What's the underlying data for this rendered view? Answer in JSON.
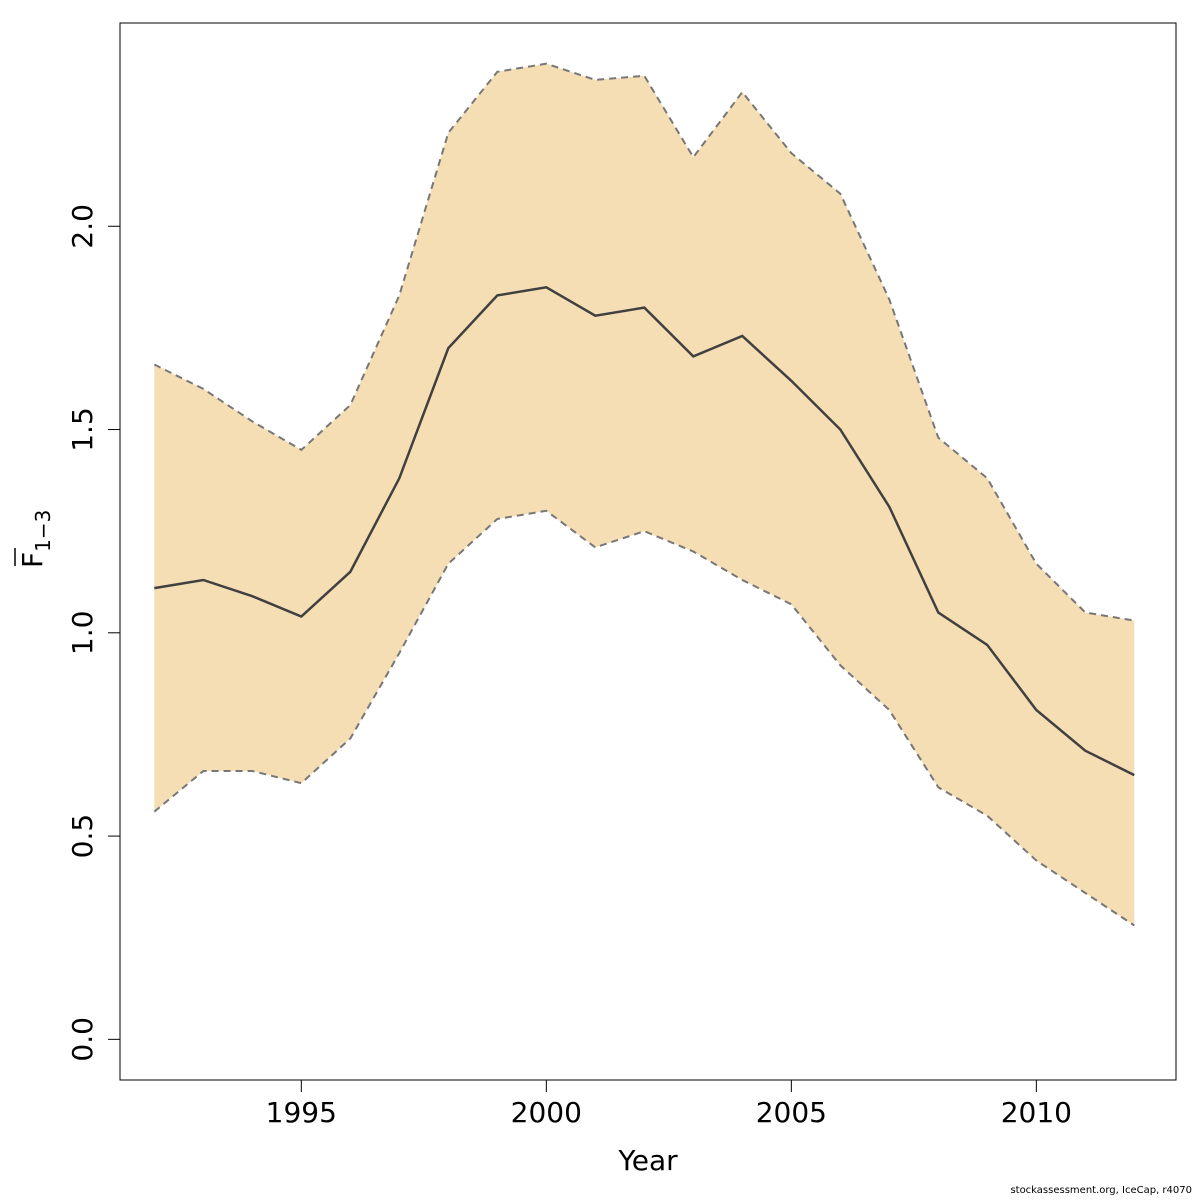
{
  "chart_data": {
    "type": "area",
    "xlabel": "Year",
    "ylabel": {
      "main": "F",
      "sub": "1−3"
    },
    "xlim": [
      1991.3,
      2012.85
    ],
    "ylim": [
      -0.1,
      2.5
    ],
    "xticks": [
      1995,
      2000,
      2005,
      2010
    ],
    "yticks": [
      0.0,
      0.5,
      1.0,
      1.5,
      2.0
    ],
    "ytick_labels": [
      "0.0",
      "0.5",
      "1.0",
      "1.5",
      "2.0"
    ],
    "x": [
      1992,
      1993,
      1994,
      1995,
      1996,
      1997,
      1998,
      1999,
      2000,
      2001,
      2002,
      2003,
      2004,
      2005,
      2006,
      2007,
      2008,
      2009,
      2010,
      2011,
      2012
    ],
    "series": [
      {
        "role": "estimate",
        "values": [
          1.11,
          1.13,
          1.09,
          1.04,
          1.15,
          1.38,
          1.7,
          1.83,
          1.85,
          1.78,
          1.8,
          1.68,
          1.73,
          1.62,
          1.5,
          1.31,
          1.05,
          0.97,
          0.81,
          0.71,
          0.65
        ]
      },
      {
        "role": "upper",
        "values": [
          1.66,
          1.6,
          1.52,
          1.45,
          1.56,
          1.83,
          2.23,
          2.38,
          2.4,
          2.36,
          2.37,
          2.17,
          2.33,
          2.18,
          2.08,
          1.82,
          1.48,
          1.38,
          1.17,
          1.05,
          1.03
        ]
      },
      {
        "role": "lower",
        "values": [
          0.56,
          0.66,
          0.66,
          0.63,
          0.74,
          0.95,
          1.17,
          1.28,
          1.3,
          1.21,
          1.25,
          1.2,
          1.13,
          1.07,
          0.92,
          0.81,
          0.62,
          0.55,
          0.44,
          0.36,
          0.28
        ]
      }
    ],
    "band_color": "#f5deb3",
    "line_color": "#404040",
    "ci_line_color": "#777777",
    "grid": false,
    "legend": "none"
  },
  "footer": "stockassessment.org, IceCap, r4070"
}
